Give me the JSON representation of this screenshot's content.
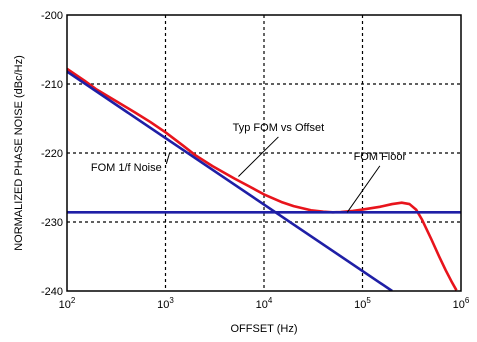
{
  "chart_data": {
    "type": "line",
    "title": "",
    "xlabel": "OFFSET (Hz)",
    "ylabel": "NORMALIZED PHASE NOISE (dBc/Hz)",
    "xscale": "log",
    "xlim": [
      100,
      1000000
    ],
    "ylim": [
      -240,
      -200
    ],
    "x_ticks": [
      {
        "base": "10",
        "exp": "2"
      },
      {
        "base": "10",
        "exp": "3"
      },
      {
        "base": "10",
        "exp": "4"
      },
      {
        "base": "10",
        "exp": "5"
      },
      {
        "base": "10",
        "exp": "6"
      }
    ],
    "y_ticks": [
      "-200",
      "-210",
      "-220",
      "-230",
      "-240"
    ],
    "y_tick_values": [
      -200,
      -210,
      -220,
      -230,
      -240
    ],
    "grid": true,
    "grid_style": "dashed",
    "series": [
      {
        "color": "#e8141c",
        "x": [
          100,
          150,
          200,
          300,
          500,
          700,
          1000,
          1500,
          2000,
          3000,
          5000,
          7000,
          10000,
          15000,
          20000,
          30000,
          40000,
          50000,
          60000,
          80000,
          100000,
          150000,
          200000,
          250000,
          300000,
          350000,
          400000,
          500000,
          600000,
          700000,
          800000,
          900000
        ],
        "y": [
          -207.8,
          -209.5,
          -210.8,
          -212.3,
          -214.2,
          -215.5,
          -217.0,
          -218.9,
          -220.3,
          -221.9,
          -223.7,
          -224.8,
          -226.0,
          -227.1,
          -227.7,
          -228.3,
          -228.5,
          -228.6,
          -228.55,
          -228.4,
          -228.2,
          -227.8,
          -227.4,
          -227.2,
          -227.4,
          -228.2,
          -229.6,
          -232.5,
          -235.0,
          -237.0,
          -238.6,
          -239.9
        ]
      },
      {
        "color": "#1f1fa6",
        "x": [
          100,
          200000
        ],
        "y": [
          -208.2,
          -240
        ]
      },
      {
        "color": "#1f1fa6",
        "x": [
          100,
          1000000
        ],
        "y": [
          -228.6,
          -228.6
        ]
      }
    ],
    "annotations": [
      {
        "text": "Typ FOM vs Offset",
        "x": 14000,
        "y": -216.8,
        "pointer_to": {
          "x": 5500,
          "y": -223.4
        }
      },
      {
        "text": "FOM Floor",
        "x": 150000,
        "y": -221.0,
        "pointer_to": {
          "x": 70000,
          "y": -228.6
        }
      },
      {
        "text": "FOM 1/f Noise",
        "x": 400,
        "y": -222.6,
        "pointer_to": {
          "x": 1100,
          "y": -220.0
        }
      }
    ]
  }
}
